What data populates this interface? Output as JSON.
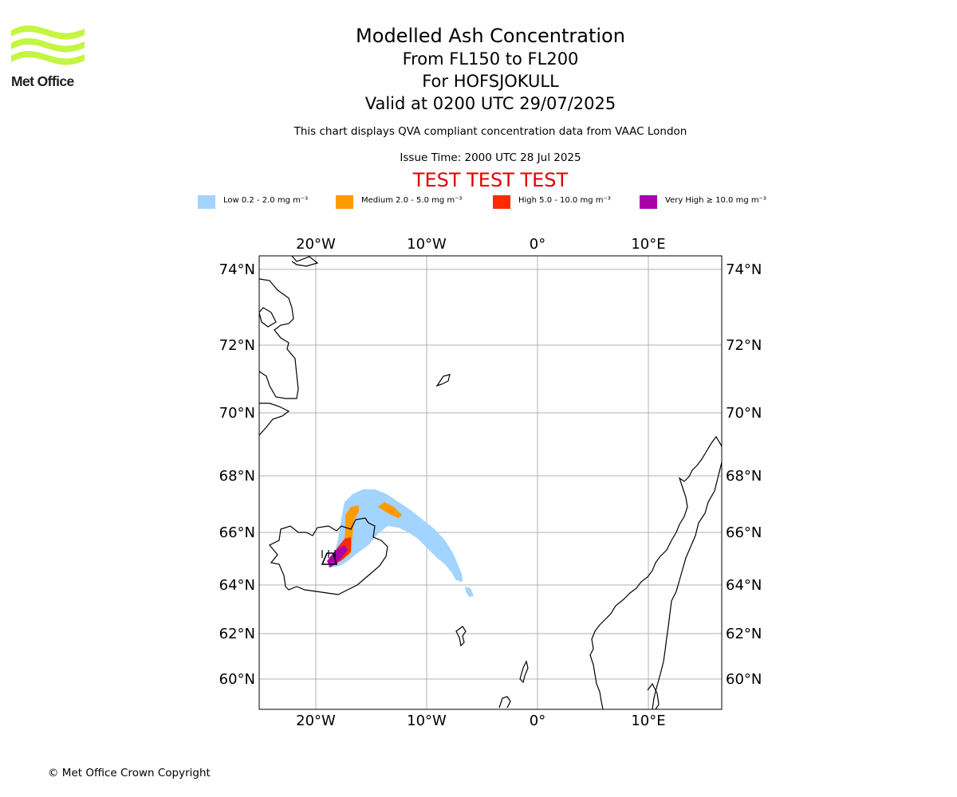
{
  "logo": {
    "text": "Met Office",
    "green": "#c4f541"
  },
  "title": {
    "line1": "Modelled Ash Concentration",
    "line2": "From FL150 to FL200",
    "line3": "For HOFSJOKULL",
    "line4": "Valid at 0200 UTC 29/07/2025"
  },
  "subtitle": "This chart displays QVA compliant concentration data from VAAC London",
  "issue_time": "Issue Time: 2000 UTC 28 Jul 2025",
  "test_banner": "TEST TEST TEST",
  "legend": [
    {
      "label": "Low 0.2 - 2.0 mg m⁻³",
      "color": "#a3d3ff"
    },
    {
      "label": "Medium 2.0 - 5.0 mg m⁻³",
      "color": "#ff9a00"
    },
    {
      "label": "High 5.0 - 10.0 mg m⁻³",
      "color": "#ff2a00"
    },
    {
      "label": "Very High ≥ 10.0 mg m⁻³",
      "color": "#aa00aa"
    }
  ],
  "map": {
    "lon_labels": [
      "20°W",
      "10°W",
      "0°",
      "10°E"
    ],
    "lat_labels": [
      "74°N",
      "72°N",
      "70°N",
      "68°N",
      "66°N",
      "64°N",
      "62°N",
      "60°N"
    ],
    "grid_color": "#b0b0b0"
  },
  "copyright": "© Met Office Crown Copyright"
}
